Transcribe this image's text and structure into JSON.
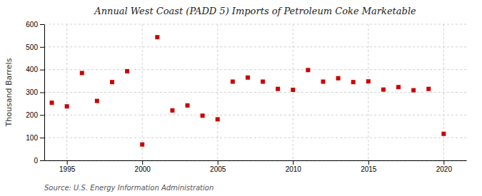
{
  "chart_data": {
    "type": "scatter",
    "title": "Annual West Coast (PADD 5) Imports of Petroleum Coke Marketable",
    "y_label": "Thousand Barrels",
    "source": "Source: U.S. Energy Information Administration",
    "x": [
      1994,
      1995,
      1996,
      1997,
      1998,
      1999,
      2000,
      2001,
      2002,
      2003,
      2004,
      2005,
      2006,
      2007,
      2008,
      2009,
      2010,
      2011,
      2012,
      2013,
      2014,
      2015,
      2016,
      2017,
      2018,
      2019,
      2020
    ],
    "values": [
      254,
      238,
      385,
      262,
      345,
      393,
      70,
      543,
      220,
      242,
      197,
      181,
      347,
      365,
      347,
      315,
      311,
      398,
      347,
      362,
      345,
      348,
      312,
      323,
      309,
      315,
      117
    ],
    "color": "#cc0000",
    "marker": "square",
    "xlim": [
      1993.5,
      2021.5
    ],
    "xticks": [
      1995,
      2000,
      2005,
      2010,
      2015,
      2020
    ],
    "ylim": [
      0,
      600
    ],
    "yticks": [
      0,
      100,
      200,
      300,
      400,
      500,
      600
    ],
    "grid": true
  }
}
